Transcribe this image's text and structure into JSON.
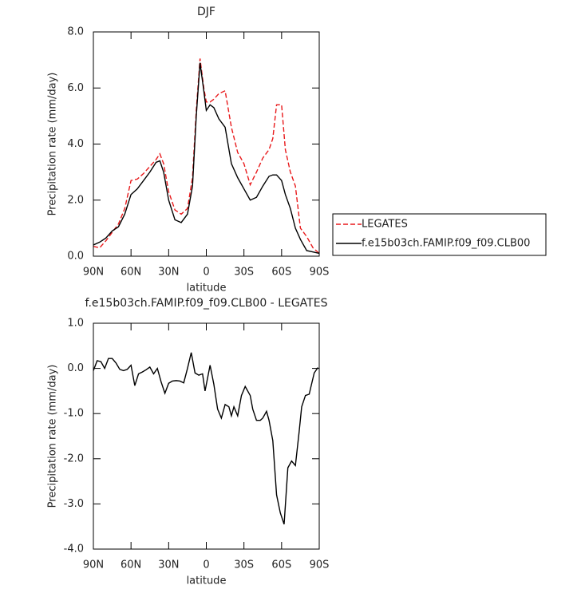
{
  "chart_data": [
    {
      "type": "line",
      "title": "DJF",
      "x_label": "latitude",
      "y_label": "Precipitation rate (mm/day)",
      "x": [
        90,
        85,
        80,
        75,
        70,
        65,
        60,
        55,
        50,
        45,
        40,
        37,
        34,
        30,
        25,
        20,
        15,
        11,
        8,
        5,
        2,
        0,
        -3,
        -6,
        -10,
        -15,
        -20,
        -25,
        -30,
        -35,
        -40,
        -45,
        -50,
        -53,
        -56,
        -60,
        -63,
        -67,
        -71,
        -75,
        -80,
        -85,
        -90
      ],
      "series": [
        {
          "name": "LEGATES",
          "color": "#e8191b",
          "dash": true,
          "values": [
            0.35,
            0.3,
            0.55,
            0.85,
            1.15,
            1.7,
            2.7,
            2.75,
            2.95,
            3.2,
            3.45,
            3.65,
            3.3,
            2.3,
            1.65,
            1.5,
            1.7,
            2.8,
            5.2,
            7.05,
            6.0,
            5.5,
            5.5,
            5.6,
            5.8,
            5.9,
            4.6,
            3.7,
            3.3,
            2.55,
            3.0,
            3.5,
            3.8,
            4.2,
            5.4,
            5.4,
            3.8,
            3.0,
            2.5,
            1.0,
            0.7,
            0.3,
            0.1
          ]
        },
        {
          "name": "f.e15b03ch.FAMIP.f09_f09.CLB00",
          "color": "#000000",
          "dash": false,
          "values": [
            0.4,
            0.5,
            0.65,
            0.9,
            1.05,
            1.5,
            2.2,
            2.4,
            2.7,
            3.0,
            3.35,
            3.4,
            3.0,
            2.0,
            1.3,
            1.2,
            1.5,
            2.5,
            5.0,
            6.9,
            5.9,
            5.2,
            5.4,
            5.3,
            4.9,
            4.6,
            3.3,
            2.8,
            2.4,
            2.0,
            2.1,
            2.5,
            2.85,
            2.9,
            2.9,
            2.7,
            2.2,
            1.7,
            1.0,
            0.6,
            0.2,
            0.15,
            0.1
          ]
        }
      ],
      "xlim": [
        90,
        -90
      ],
      "xticks": [
        {
          "value": 90,
          "label": "90N"
        },
        {
          "value": 60,
          "label": "60N"
        },
        {
          "value": 30,
          "label": "30N"
        },
        0,
        {
          "value": -30,
          "label": "30S"
        },
        {
          "value": -60,
          "label": "60S"
        },
        {
          "value": -90,
          "label": "90S"
        }
      ],
      "ylim": [
        0,
        8
      ],
      "yticks": [
        {
          "value": 0,
          "label": "0.0"
        },
        {
          "value": 2,
          "label": "2.0"
        },
        {
          "value": 4,
          "label": "4.0"
        },
        {
          "value": 6,
          "label": "6.0"
        },
        {
          "value": 8,
          "label": "8.0"
        }
      ],
      "legend": "right"
    },
    {
      "type": "line",
      "title": "f.e15b03ch.FAMIP.f09_f09.CLB00 - LEGATES",
      "x_label": "latitude",
      "y_label": "Precipitation rate (mm/day)",
      "x": [
        90,
        87,
        84,
        81,
        78,
        75,
        72,
        69,
        66,
        63,
        60,
        57,
        54,
        51,
        48,
        45,
        42,
        39,
        36,
        33,
        30,
        27,
        24,
        21,
        18,
        15,
        12,
        9,
        6,
        3,
        1,
        -3,
        -6,
        -9,
        -12,
        -15,
        -18,
        -20,
        -22,
        -25,
        -28,
        -31,
        -35,
        -37,
        -40,
        -43,
        -45,
        -48,
        -50,
        -53,
        -56,
        -59,
        -62,
        -65,
        -68,
        -71,
        -74,
        -76,
        -79,
        -82,
        -86,
        -89
      ],
      "values": [
        -0.05,
        0.17,
        0.15,
        0.0,
        0.22,
        0.22,
        0.12,
        -0.02,
        -0.05,
        -0.02,
        0.07,
        -0.38,
        -0.12,
        -0.08,
        -0.03,
        0.03,
        -0.12,
        0.0,
        -0.3,
        -0.55,
        -0.33,
        -0.28,
        -0.27,
        -0.28,
        -0.32,
        0.0,
        0.35,
        -0.1,
        -0.15,
        -0.12,
        -0.5,
        0.07,
        -0.35,
        -0.9,
        -1.1,
        -0.8,
        -0.85,
        -1.05,
        -0.85,
        -1.05,
        -0.6,
        -0.4,
        -0.6,
        -0.9,
        -1.15,
        -1.15,
        -1.1,
        -0.95,
        -1.15,
        -1.6,
        -2.8,
        -3.2,
        -3.45,
        -2.2,
        -2.05,
        -2.15,
        -1.4,
        -0.85,
        -0.6,
        -0.57,
        -0.1,
        0.02
      ],
      "color": "#000000",
      "xlim": [
        90,
        -90
      ],
      "xticks": [
        {
          "value": 90,
          "label": "90N"
        },
        {
          "value": 60,
          "label": "60N"
        },
        {
          "value": 30,
          "label": "30N"
        },
        0,
        {
          "value": -30,
          "label": "30S"
        },
        {
          "value": -60,
          "label": "60S"
        },
        {
          "value": -90,
          "label": "90S"
        }
      ],
      "ylim": [
        -4,
        1
      ],
      "yticks": [
        {
          "value": -4,
          "label": "-4.0"
        },
        {
          "value": -3,
          "label": "-3.0"
        },
        {
          "value": -2,
          "label": "-2.0"
        },
        {
          "value": -1,
          "label": "-1.0"
        },
        {
          "value": 0,
          "label": "0.0"
        },
        {
          "value": 1,
          "label": "1.0"
        }
      ]
    }
  ]
}
